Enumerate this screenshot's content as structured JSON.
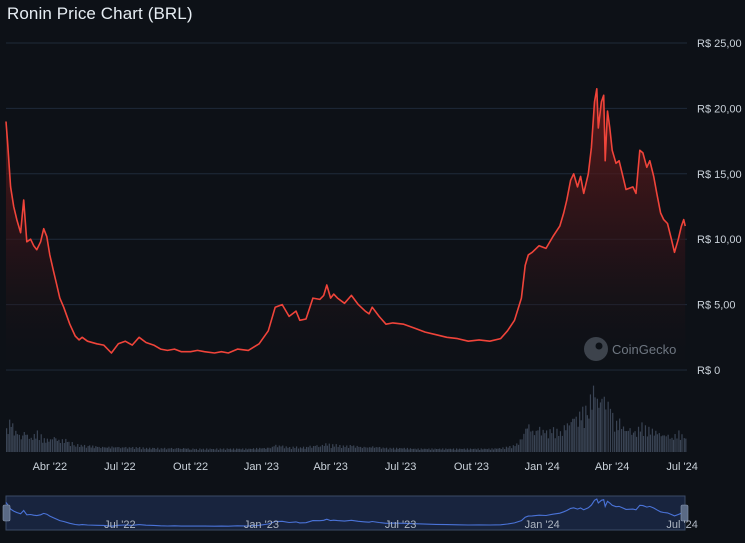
{
  "title": "Ronin Price Chart (BRL)",
  "watermark": "CoinGecko",
  "colors": {
    "background": "#0d1117",
    "line": "#f0443a",
    "grid": "#1f2a3a",
    "volume": "#3a4454",
    "navigator_line": "#4a73d8",
    "navigator_fill": "#1b2a4a"
  },
  "chart_data": {
    "type": "line",
    "title": "Ronin Price Chart (BRL)",
    "xlabel": "",
    "ylabel": "",
    "ylim": [
      0,
      25
    ],
    "yticks": [
      0,
      5,
      10,
      15,
      20,
      25
    ],
    "ytick_labels": [
      "R$ 0",
      "R$ 5,00",
      "R$ 10,00",
      "R$ 15,00",
      "R$ 20,00",
      "R$ 25,00"
    ],
    "xlim": [
      "2022-02-03",
      "2024-07-06"
    ],
    "xticks": [
      "2022-04-01",
      "2022-07-01",
      "2022-10-01",
      "2023-01-01",
      "2023-04-01",
      "2023-07-01",
      "2023-10-01",
      "2024-01-01",
      "2024-04-01",
      "2024-07-01"
    ],
    "xtick_labels": [
      "Abr '22",
      "Jul '22",
      "Out '22",
      "Jan '23",
      "Abr '23",
      "Jul '23",
      "Out '23",
      "Jan '24",
      "Abr '24",
      "Jul '24"
    ],
    "grid": true,
    "legend": "none",
    "series": [
      {
        "x": [
          "2022-02-03",
          "2022-02-05",
          "2022-02-09",
          "2022-02-13",
          "2022-02-17",
          "2022-02-22",
          "2022-02-26",
          "2022-03-02",
          "2022-03-07",
          "2022-03-11",
          "2022-03-15",
          "2022-03-20",
          "2022-03-24",
          "2022-03-28",
          "2022-04-01",
          "2022-04-06",
          "2022-04-10",
          "2022-04-14",
          "2022-04-19",
          "2022-04-27",
          "2022-05-04",
          "2022-05-09",
          "2022-05-13",
          "2022-05-20",
          "2022-06-01",
          "2022-06-10",
          "2022-06-20",
          "2022-06-29",
          "2022-07-08",
          "2022-07-17",
          "2022-07-26",
          "2022-08-04",
          "2022-08-14",
          "2022-08-23",
          "2022-09-01",
          "2022-09-10",
          "2022-09-19",
          "2022-10-01",
          "2022-10-10",
          "2022-10-19",
          "2022-11-01",
          "2022-11-10",
          "2022-11-19",
          "2022-12-01",
          "2022-12-15",
          "2022-12-29",
          "2023-01-10",
          "2023-01-19",
          "2023-01-28",
          "2023-02-06",
          "2023-02-15",
          "2023-02-20",
          "2023-02-28",
          "2023-03-09",
          "2023-03-18",
          "2023-03-23",
          "2023-03-27",
          "2023-04-01",
          "2023-04-05",
          "2023-04-10",
          "2023-04-19",
          "2023-04-28",
          "2023-05-07",
          "2023-05-16",
          "2023-05-21",
          "2023-05-25",
          "2023-06-03",
          "2023-06-12",
          "2023-06-21",
          "2023-07-05",
          "2023-07-19",
          "2023-08-02",
          "2023-08-16",
          "2023-08-30",
          "2023-09-13",
          "2023-09-27",
          "2023-10-11",
          "2023-10-25",
          "2023-11-08",
          "2023-11-17",
          "2023-11-26",
          "2023-12-05",
          "2023-12-10",
          "2023-12-14",
          "2023-12-19",
          "2023-12-28",
          "2024-01-06",
          "2024-01-15",
          "2024-01-24",
          "2024-01-29",
          "2024-02-02",
          "2024-02-07",
          "2024-02-11",
          "2024-02-16",
          "2024-02-20",
          "2024-02-24",
          "2024-03-01",
          "2024-03-05",
          "2024-03-09",
          "2024-03-12",
          "2024-03-14",
          "2024-03-18",
          "2024-03-21",
          "2024-03-23",
          "2024-03-26",
          "2024-03-29",
          "2024-04-01",
          "2024-04-06",
          "2024-04-10",
          "2024-04-15",
          "2024-04-19",
          "2024-04-28",
          "2024-05-02",
          "2024-05-07",
          "2024-05-11",
          "2024-05-16",
          "2024-05-20",
          "2024-05-25",
          "2024-05-29",
          "2024-06-03",
          "2024-06-07",
          "2024-06-12",
          "2024-06-17",
          "2024-06-21",
          "2024-06-26",
          "2024-06-30",
          "2024-07-03",
          "2024-07-05"
        ],
        "values": [
          19.0,
          17.5,
          14.0,
          12.5,
          11.5,
          10.5,
          13.0,
          9.8,
          10.0,
          9.5,
          9.2,
          9.8,
          10.8,
          10.2,
          8.8,
          7.5,
          6.5,
          5.5,
          4.8,
          3.5,
          2.6,
          2.3,
          2.5,
          2.2,
          2.0,
          1.9,
          1.3,
          2.0,
          2.2,
          1.9,
          2.5,
          2.1,
          1.9,
          1.6,
          1.5,
          1.6,
          1.4,
          1.4,
          1.5,
          1.4,
          1.3,
          1.4,
          1.3,
          1.6,
          1.5,
          2.0,
          3.0,
          4.8,
          5.0,
          4.1,
          4.5,
          3.8,
          3.9,
          5.5,
          5.4,
          5.7,
          6.5,
          5.5,
          5.8,
          5.5,
          5.1,
          5.7,
          5.0,
          4.5,
          4.3,
          4.8,
          4.1,
          3.5,
          3.6,
          3.5,
          3.2,
          2.9,
          2.7,
          2.5,
          2.4,
          2.2,
          2.3,
          2.2,
          2.4,
          3.0,
          3.8,
          5.5,
          8.0,
          8.8,
          9.0,
          9.5,
          9.3,
          10.2,
          11.0,
          12.0,
          13.0,
          14.5,
          15.0,
          14.0,
          14.8,
          13.5,
          15.0,
          17.0,
          20.5,
          21.5,
          18.5,
          20.5,
          21.0,
          16.0,
          19.8,
          18.5,
          16.8,
          15.8,
          16.0,
          14.8,
          13.8,
          14.0,
          13.5,
          16.8,
          16.6,
          15.5,
          16.0,
          14.8,
          13.5,
          12.0,
          11.5,
          11.2,
          10.0,
          9.0,
          10.0,
          11.0,
          11.5,
          11.0
        ],
        "volume": [
          0.6,
          0.4,
          0.5,
          0.3,
          0.3,
          0.2,
          0.3,
          0.25,
          0.2,
          0.25,
          0.3,
          0.25,
          0.2,
          0.2,
          0.2,
          0.25,
          0.2,
          0.18,
          0.2,
          0.15,
          0.12,
          0.1,
          0.1,
          0.1,
          0.08,
          0.07,
          0.08,
          0.07,
          0.07,
          0.07,
          0.07,
          0.06,
          0.06,
          0.06,
          0.06,
          0.06,
          0.06,
          0.05,
          0.05,
          0.05,
          0.05,
          0.05,
          0.05,
          0.05,
          0.05,
          0.06,
          0.06,
          0.1,
          0.09,
          0.07,
          0.08,
          0.07,
          0.08,
          0.1,
          0.1,
          0.12,
          0.14,
          0.1,
          0.12,
          0.1,
          0.09,
          0.1,
          0.08,
          0.07,
          0.07,
          0.08,
          0.07,
          0.06,
          0.06,
          0.06,
          0.05,
          0.05,
          0.05,
          0.05,
          0.05,
          0.05,
          0.05,
          0.05,
          0.06,
          0.08,
          0.1,
          0.2,
          0.35,
          0.4,
          0.3,
          0.35,
          0.3,
          0.35,
          0.3,
          0.4,
          0.45,
          0.5,
          0.6,
          0.5,
          0.7,
          0.6,
          0.75,
          0.85,
          1.0,
          0.9,
          0.7,
          0.8,
          0.8,
          0.6,
          0.7,
          0.6,
          0.55,
          0.45,
          0.5,
          0.4,
          0.35,
          0.35,
          0.3,
          0.45,
          0.4,
          0.35,
          0.35,
          0.3,
          0.3,
          0.25,
          0.25,
          0.25,
          0.2,
          0.25,
          0.3,
          0.25,
          0.2,
          0.2
        ]
      }
    ]
  },
  "navigator": {
    "labels": [
      "Jul '22",
      "Jan '23",
      "Jul '23",
      "Jan '24",
      "Jul '24"
    ],
    "label_dates": [
      "2022-07-01",
      "2023-01-01",
      "2023-07-01",
      "2024-01-01",
      "2024-07-01"
    ]
  }
}
